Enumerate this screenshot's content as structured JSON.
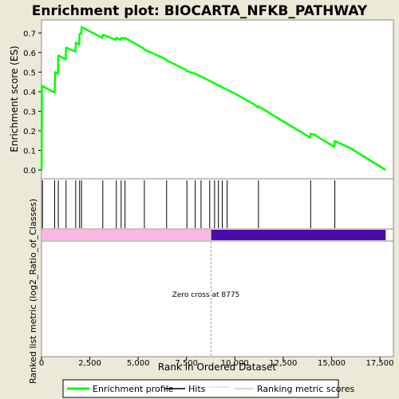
{
  "chart_data": {
    "type": "line",
    "title": "Enrichment plot: BIOCARTA_NFKB_PATHWAY",
    "es_panel": {
      "ylabel": "Enrichment score (ES)",
      "ylim": [
        0.0,
        0.75
      ],
      "yticks": [
        "0.0",
        "0.1",
        "0.2",
        "0.3",
        "0.4",
        "0.5",
        "0.6",
        "0.7"
      ],
      "ytick_values": [
        0.0,
        0.1,
        0.2,
        0.3,
        0.4,
        0.5,
        0.6,
        0.7
      ]
    },
    "bottom_panel": {
      "ylabel": "Ranked list metric (log2_Ratio_of_Classes)",
      "annotation": "Zero cross at 8775",
      "zero_cross": 8775
    },
    "xlabel": "Rank in Ordered Dataset",
    "xlim": [
      0,
      18200
    ],
    "xticks": [
      "0",
      "2,500",
      "5,000",
      "7,500",
      "10,000",
      "12,500",
      "15,000",
      "17,500"
    ],
    "xtick_values": [
      0,
      2500,
      5000,
      7500,
      10000,
      12500,
      15000,
      17500
    ],
    "series": [
      {
        "name": "Enrichment profile",
        "color": "#00ff00",
        "x": [
          0,
          10,
          20,
          680,
          700,
          850,
          870,
          1250,
          1270,
          1750,
          1770,
          1950,
          1970,
          2050,
          2070,
          3150,
          3170,
          3850,
          3870,
          4100,
          4120,
          4300,
          4320,
          5300,
          5320,
          6450,
          6470,
          7500,
          7520,
          8000,
          9000,
          10000,
          11000,
          11200,
          11220,
          13900,
          13920,
          14100,
          15150,
          15170,
          16000,
          17800
        ],
        "y": [
          0.0,
          0.0,
          0.43,
          0.395,
          0.5,
          0.49,
          0.585,
          0.565,
          0.625,
          0.605,
          0.65,
          0.64,
          0.695,
          0.695,
          0.73,
          0.675,
          0.69,
          0.665,
          0.675,
          0.665,
          0.675,
          0.67,
          0.675,
          0.62,
          0.615,
          0.565,
          0.56,
          0.51,
          0.505,
          0.49,
          0.44,
          0.39,
          0.335,
          0.32,
          0.325,
          0.165,
          0.185,
          0.18,
          0.118,
          0.148,
          0.11,
          0.0
        ]
      }
    ],
    "hits": [
      50,
      680,
      870,
      1270,
      1770,
      1970,
      2070,
      3170,
      3870,
      4120,
      4320,
      5320,
      6470,
      7520,
      7950,
      8250,
      8700,
      8950,
      9150,
      9350,
      9600,
      11220,
      13920,
      15170
    ],
    "legend": {
      "placement": "bottom",
      "items": [
        {
          "label": "Enrichment profile",
          "color": "#00ff00"
        },
        {
          "label": "Hits",
          "color": "#000000"
        },
        {
          "label": "",
          "color": "#cccccc"
        },
        {
          "label": "Ranking metric scores",
          "color": "#cccccc"
        }
      ]
    },
    "colors": {
      "positive_band": "#ffb6e2",
      "negative_band": "#4b0aaa",
      "frame": "#888888"
    }
  }
}
